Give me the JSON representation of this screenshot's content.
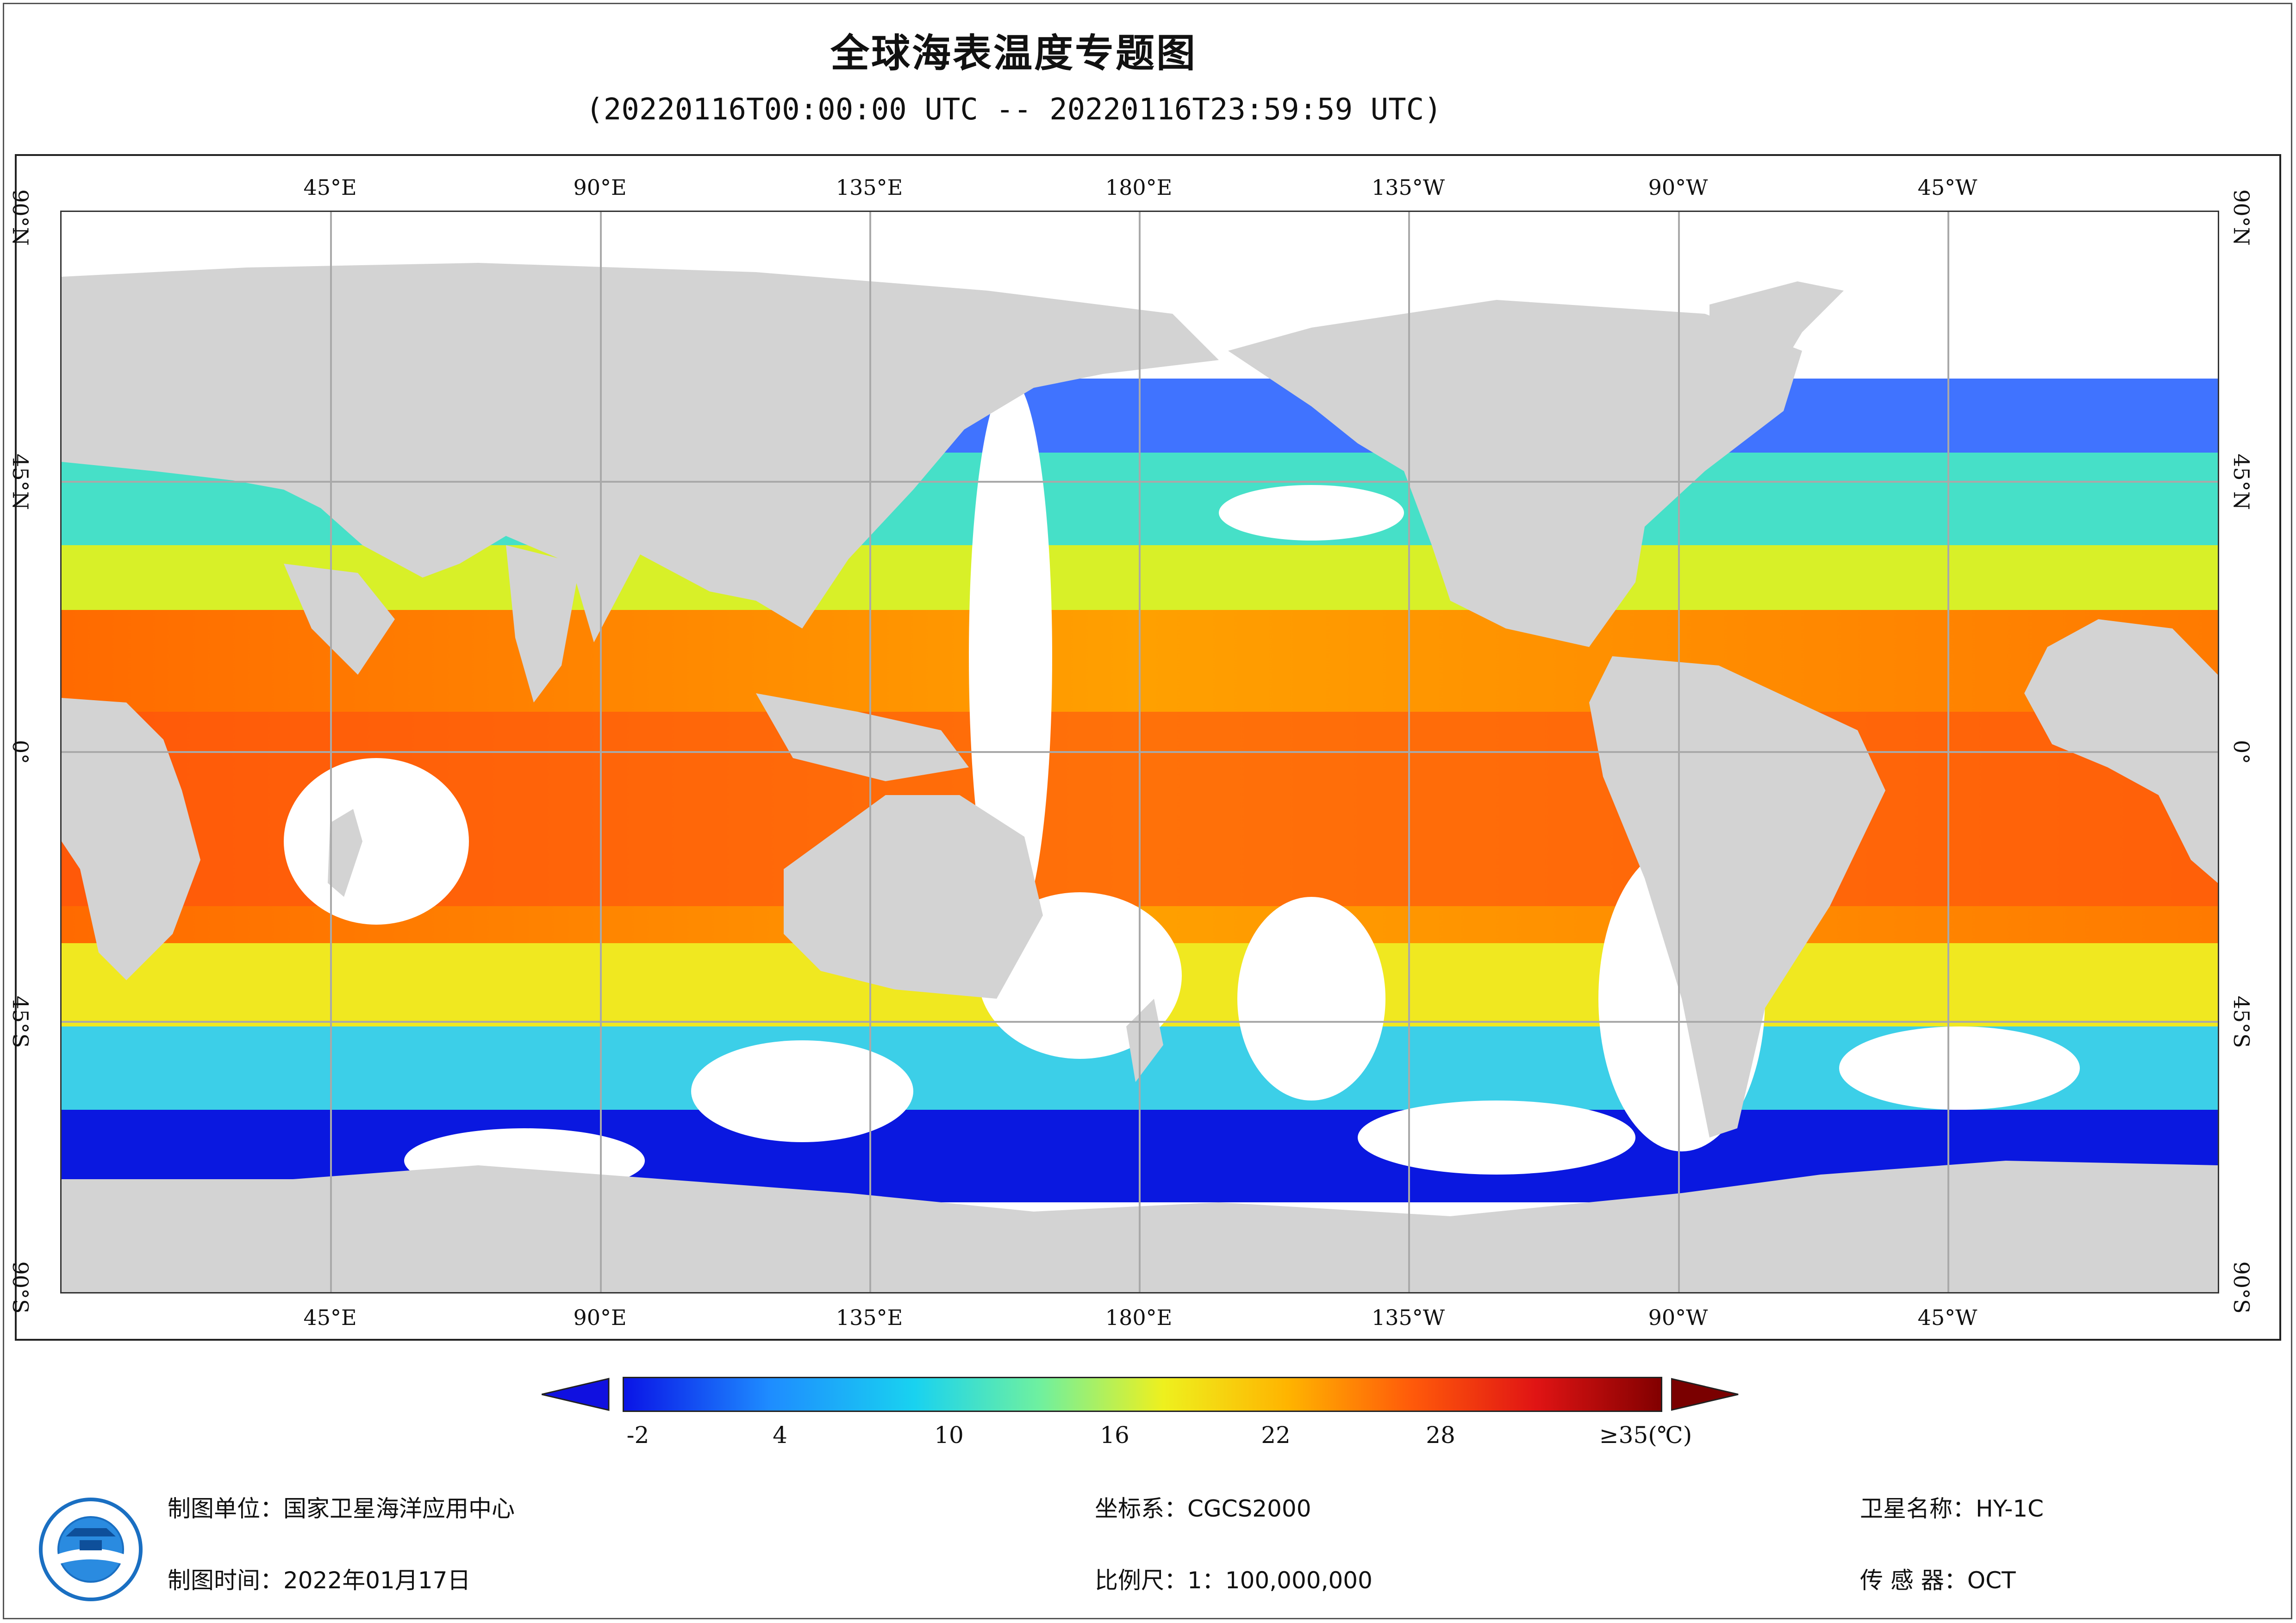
{
  "title": "全球海表温度专题图",
  "subtitle": "(20220116T00:00:00 UTC -- 20220116T23:59:59 UTC)",
  "map": {
    "projection": "equirectangular",
    "center_longitude": "180°",
    "colors": {
      "land": "#d3d3d3",
      "grid": "#a9a9a9",
      "no_data": "#ffffff"
    },
    "top_lon_labels": [
      "45°E",
      "90°E",
      "135°E",
      "180°E",
      "135°W",
      "90°W",
      "45°W"
    ],
    "bottom_lon_labels": [
      "45°E",
      "90°E",
      "135°E",
      "180°E",
      "135°W",
      "90°W",
      "45°W"
    ],
    "left_lat_labels": [
      "90°N",
      "45°N",
      "0°",
      "45°S",
      "90°S"
    ],
    "right_lat_labels": [
      "90°N",
      "45°N",
      "0°",
      "45°S",
      "90°S"
    ]
  },
  "colorbar": {
    "ticks": [
      "-2",
      "4",
      "10",
      "16",
      "22",
      "28",
      "≥35(℃)"
    ],
    "range": [
      -2,
      35
    ],
    "colors": [
      "#0a14e6",
      "#1e8cff",
      "#19d2f0",
      "#6ef0a0",
      "#eef01e",
      "#ffb400",
      "#ff5a0a",
      "#e01414",
      "#820000"
    ],
    "under_color": "#1010e0",
    "over_color": "#7a0000"
  },
  "info": {
    "unit": "制图单位：国家卫星海洋应用中心",
    "time": "制图时间：2022年01月17日",
    "crs": "坐标系：CGCS2000",
    "scale": "比例尺：1：100,000,000",
    "satellite": "卫星名称：HY-1C",
    "sensor": "传 感 器：OCT"
  },
  "logo": {
    "icon": "nsoas-logo-icon"
  }
}
